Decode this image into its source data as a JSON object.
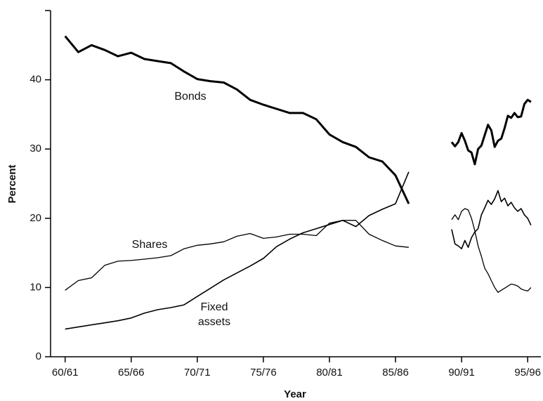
{
  "chart_data": {
    "type": "line",
    "x_label": "Year",
    "y_label": "Percent",
    "x": [
      1960,
      1961,
      1962,
      1963,
      1964,
      1965,
      1966,
      1967,
      1968,
      1969,
      1970,
      1971,
      1972,
      1973,
      1974,
      1975,
      1976,
      1977,
      1978,
      1979,
      1980,
      1981,
      1982,
      1983,
      1984,
      1985,
      1986,
      1987.5,
      1989.25,
      1989.5,
      1989.75,
      1990,
      1990.25,
      1990.5,
      1990.75,
      1991,
      1991.25,
      1991.5,
      1991.75,
      1992,
      1992.25,
      1992.5,
      1992.75,
      1993,
      1993.25,
      1993.5,
      1993.75,
      1994,
      1994.25,
      1994.5,
      1994.75,
      1995,
      1995.25
    ],
    "series": [
      {
        "name": "Bonds",
        "color": "#000000",
        "values": [
          46.3,
          44.0,
          45.0,
          44.3,
          43.4,
          43.9,
          43.0,
          42.7,
          42.4,
          41.2,
          40.1,
          39.8,
          39.6,
          38.6,
          37.1,
          36.4,
          35.8,
          35.2,
          35.2,
          34.3,
          32.1,
          31.0,
          30.3,
          28.8,
          28.2,
          26.2,
          22.1,
          null,
          31.0,
          30.4,
          31.0,
          32.3,
          31.2,
          29.8,
          29.5,
          27.8,
          30.0,
          30.5,
          32.0,
          33.5,
          32.7,
          30.3,
          31.2,
          31.5,
          33.0,
          34.8,
          34.5,
          35.2,
          34.6,
          34.7,
          36.5,
          37.1,
          36.8
        ]
      },
      {
        "name": "Shares",
        "color": "#000000",
        "values": [
          9.6,
          11.0,
          11.4,
          13.2,
          13.8,
          13.9,
          14.1,
          14.3,
          14.6,
          15.6,
          16.1,
          16.3,
          16.6,
          17.4,
          17.8,
          17.1,
          17.3,
          17.7,
          17.7,
          17.5,
          19.3,
          19.7,
          19.7,
          17.7,
          16.8,
          16.0,
          15.8,
          null,
          19.8,
          20.5,
          19.8,
          21.0,
          21.4,
          21.2,
          20.0,
          18.2,
          16.0,
          14.5,
          12.8,
          12.0,
          11.0,
          10.0,
          9.3,
          9.6,
          9.9,
          10.2,
          10.5,
          10.4,
          10.2,
          9.8,
          9.6,
          9.5,
          10.0
        ]
      },
      {
        "name": "Fixed assets",
        "color": "#000000",
        "values": [
          4.0,
          4.3,
          4.6,
          4.9,
          5.2,
          5.6,
          6.3,
          6.8,
          7.1,
          7.5,
          8.7,
          9.9,
          11.1,
          12.1,
          13.1,
          14.2,
          15.9,
          17.0,
          17.9,
          18.5,
          19.1,
          19.7,
          18.8,
          20.4,
          21.3,
          22.1,
          26.7,
          null,
          18.4,
          16.3,
          16.0,
          15.6,
          16.8,
          15.8,
          17.2,
          18.0,
          18.5,
          20.5,
          21.5,
          22.6,
          22.0,
          22.8,
          24.0,
          22.4,
          22.9,
          21.8,
          22.3,
          21.5,
          21.0,
          21.4,
          20.5,
          20.0,
          19.0
        ]
      }
    ],
    "xlim": [
      1958.9,
      1996
    ],
    "xticks": [
      {
        "value": 1960,
        "label": "60/61"
      },
      {
        "value": 1965,
        "label": "65/66"
      },
      {
        "value": 1970,
        "label": "70/71"
      },
      {
        "value": 1975,
        "label": "75/76"
      },
      {
        "value": 1980,
        "label": "80/81"
      },
      {
        "value": 1985,
        "label": "85/86"
      },
      {
        "value": 1990,
        "label": "90/91"
      },
      {
        "value": 1995,
        "label": "95/96"
      }
    ],
    "ylim": [
      0,
      50
    ],
    "yticks": [
      0,
      10,
      20,
      30,
      40
    ]
  }
}
